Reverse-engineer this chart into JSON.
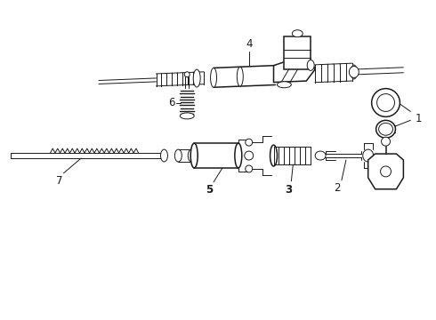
{
  "bg_color": "#ffffff",
  "line_color": "#1a1a1a",
  "fig_width": 4.9,
  "fig_height": 3.6,
  "dpi": 100,
  "label_fontsize": 8.5
}
